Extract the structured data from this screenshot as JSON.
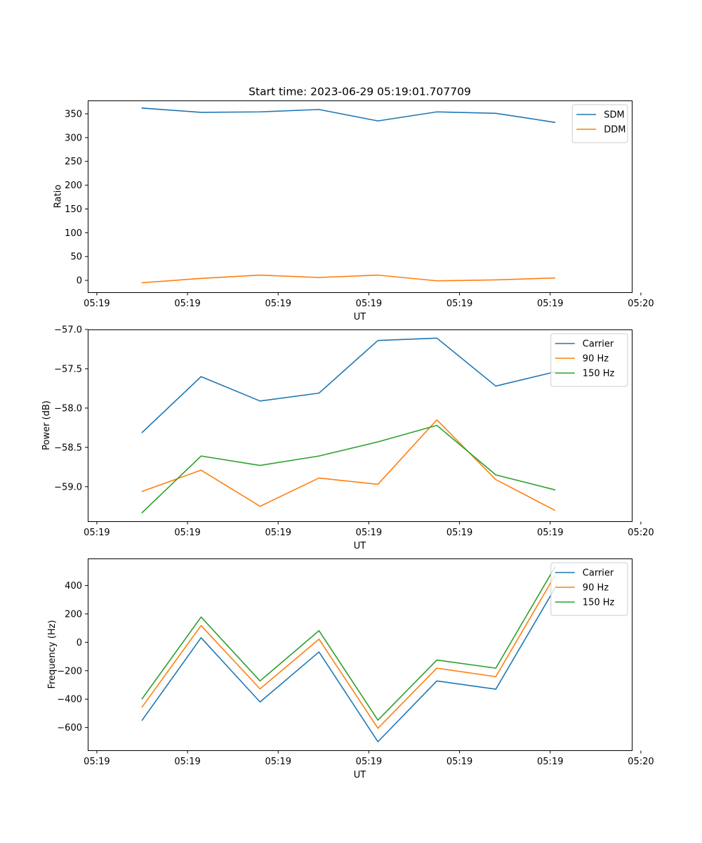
{
  "figure": {
    "title": "Start time: 2023-06-29 05:19:01.707709"
  },
  "chart_data": [
    {
      "type": "line",
      "title": "Start time: 2023-06-29 05:19:01.707709",
      "xlabel": "UT",
      "ylabel": "Ratio",
      "x": [
        0.5,
        1.15,
        1.8,
        2.45,
        3.1,
        3.75,
        4.4,
        5.05
      ],
      "xlim": [
        -0.1,
        5.9
      ],
      "x_ticks": [
        0,
        1,
        2,
        3,
        4,
        5,
        6
      ],
      "x_tick_labels": [
        "05:19",
        "05:19",
        "05:19",
        "05:19",
        "05:19",
        "05:19",
        "05:20"
      ],
      "ylim": [
        -25,
        378
      ],
      "y_ticks": [
        0,
        50,
        100,
        150,
        200,
        250,
        300,
        350
      ],
      "y_tick_labels": [
        "0",
        "50",
        "100",
        "150",
        "200",
        "250",
        "300",
        "350"
      ],
      "series": [
        {
          "name": "SDM",
          "color": "#1f77b4",
          "values": [
            362,
            353,
            354,
            359,
            335,
            354,
            351,
            332
          ]
        },
        {
          "name": "DDM",
          "color": "#ff7f0e",
          "values": [
            -5,
            4,
            11,
            6,
            11,
            -1,
            1,
            5
          ]
        }
      ],
      "legend": "top-right",
      "grid": false
    },
    {
      "type": "line",
      "xlabel": "UT",
      "ylabel": "Power (dB)",
      "x": [
        0.5,
        1.15,
        1.8,
        2.45,
        3.1,
        3.75,
        4.4,
        5.05
      ],
      "xlim": [
        -0.1,
        5.9
      ],
      "x_ticks": [
        0,
        1,
        2,
        3,
        4,
        5,
        6
      ],
      "x_tick_labels": [
        "05:19",
        "05:19",
        "05:19",
        "05:19",
        "05:19",
        "05:19",
        "05:20"
      ],
      "ylim": [
        -59.44,
        -57.0
      ],
      "y_ticks": [
        -59.0,
        -58.5,
        -58.0,
        -57.5,
        -57.0
      ],
      "y_tick_labels": [
        "−59.0",
        "−58.5",
        "−58.0",
        "−57.5",
        "−57.0"
      ],
      "series": [
        {
          "name": "Carrier",
          "color": "#1f77b4",
          "values": [
            -58.31,
            -57.6,
            -57.91,
            -57.81,
            -57.14,
            -57.11,
            -57.72,
            -57.54
          ]
        },
        {
          "name": "90 Hz",
          "color": "#ff7f0e",
          "values": [
            -59.06,
            -58.79,
            -59.25,
            -58.89,
            -58.97,
            -58.15,
            -58.91,
            -59.3
          ]
        },
        {
          "name": "150 Hz",
          "color": "#2ca02c",
          "values": [
            -59.33,
            -58.61,
            -58.73,
            -58.61,
            -58.43,
            -58.22,
            -58.85,
            -59.04
          ]
        }
      ],
      "legend": "top-right",
      "grid": false
    },
    {
      "type": "line",
      "xlabel": "UT",
      "ylabel": "Frequency (Hz)",
      "x": [
        0.5,
        1.15,
        1.8,
        2.45,
        3.1,
        3.75,
        4.4,
        5.05
      ],
      "xlim": [
        -0.1,
        5.9
      ],
      "x_ticks": [
        0,
        1,
        2,
        3,
        4,
        5,
        6
      ],
      "x_tick_labels": [
        "05:19",
        "05:19",
        "05:19",
        "05:19",
        "05:19",
        "05:19",
        "05:20"
      ],
      "ylim": [
        -760,
        590
      ],
      "y_ticks": [
        -600,
        -400,
        -200,
        0,
        200,
        400
      ],
      "y_tick_labels": [
        "−600",
        "−400",
        "−200",
        "0",
        "200",
        "400"
      ],
      "series": [
        {
          "name": "Carrier",
          "color": "#1f77b4",
          "values": [
            -548,
            32,
            -420,
            -68,
            -700,
            -272,
            -330,
            378
          ]
        },
        {
          "name": "90 Hz",
          "color": "#ff7f0e",
          "values": [
            -455,
            118,
            -328,
            22,
            -605,
            -182,
            -242,
            468
          ]
        },
        {
          "name": "150 Hz",
          "color": "#2ca02c",
          "values": [
            -397,
            178,
            -272,
            82,
            -548,
            -125,
            -182,
            527
          ]
        }
      ],
      "legend": "top-right",
      "grid": false
    }
  ]
}
